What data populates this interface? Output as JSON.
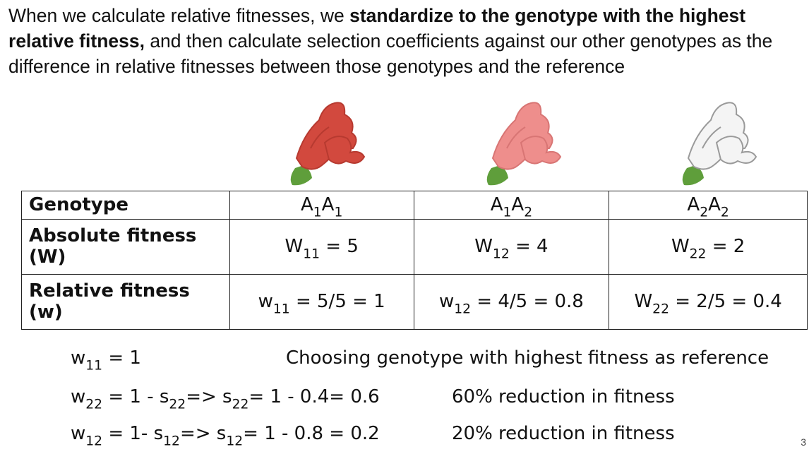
{
  "intro": {
    "part1": "When we calculate relative fitnesses, we ",
    "bold": "standardize to the genotype with the highest relative fitness,",
    "part2": " and then calculate selection coefficients against our other genotypes as the difference in relative fitnesses between those genotypes and the reference"
  },
  "flowers": [
    {
      "color": "red",
      "petal": "#d2493e",
      "petal_dark": "#b73a30",
      "leaf": "#5f9e3b"
    },
    {
      "color": "pink",
      "petal": "#ee8e8c",
      "petal_dark": "#d87574",
      "leaf": "#5f9e3b"
    },
    {
      "color": "white",
      "petal": "#f4f4f4",
      "petal_dark": "#9a9a9a",
      "leaf": "#5f9e3b"
    }
  ],
  "table": {
    "row_genotype": {
      "label": "Genotype",
      "cells": [
        {
          "main": "A",
          "s1": "1",
          "main2": "A",
          "s2": "1"
        },
        {
          "main": "A",
          "s1": "1",
          "main2": "A",
          "s2": "2"
        },
        {
          "main": "A",
          "s1": "2",
          "main2": "A",
          "s2": "2"
        }
      ]
    },
    "row_absolute": {
      "label": "Absolute fitness (W)",
      "cells": [
        {
          "sym": "W",
          "sub": "11",
          "rest": " = 5"
        },
        {
          "sym": "W",
          "sub": "12",
          "rest": " = 4"
        },
        {
          "sym": "W",
          "sub": "22",
          "rest": " = 2"
        }
      ]
    },
    "row_relative": {
      "label": "Relative fitness (w)",
      "cells": [
        {
          "sym": "w",
          "sub": "11",
          "rest": " = 5/5 = 1"
        },
        {
          "sym": "w",
          "sub": "12",
          "rest": " = 4/5 = 0.8"
        },
        {
          "sym": "W",
          "sub": "22",
          "rest": " = 2/5 = 0.4"
        }
      ]
    }
  },
  "calculations": [
    {
      "p1": "w",
      "s1": "11",
      "p2": " = 1",
      "s2": "",
      "p3": "",
      "s3": "",
      "p4": "",
      "note": "Choosing genotype with highest fitness as reference"
    },
    {
      "p1": "w",
      "s1": "22",
      "p2": " = 1 - s",
      "s2": "22",
      "p3": "=> s",
      "s3": "22",
      "p4": "= 1 - 0.4= 0.6",
      "note": "60% reduction in fitness"
    },
    {
      "p1": "w",
      "s1": "12",
      "p2": " = 1- s",
      "s2": "12",
      "p3": "=> s",
      "s3": "12",
      "p4": "= 1 - 0.8 = 0.2",
      "note": "20% reduction in fitness"
    }
  ],
  "page_number": "3"
}
